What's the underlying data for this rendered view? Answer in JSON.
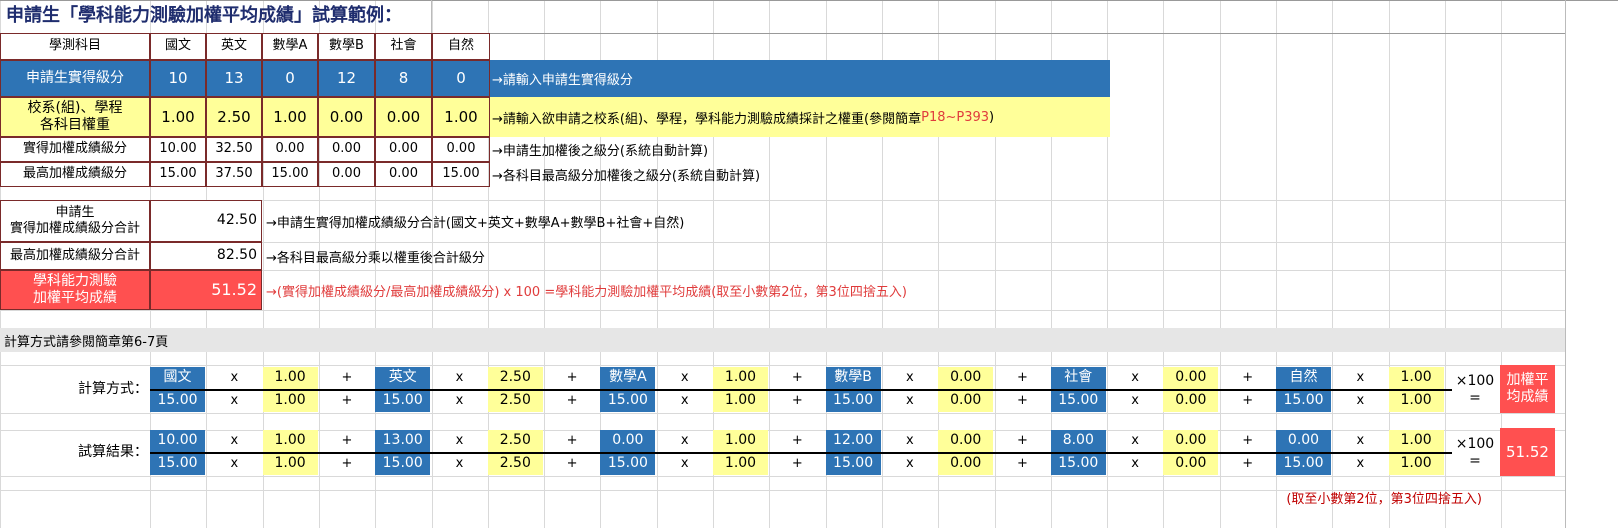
{
  "title": "申請生「學科能力測驗加權平均成績」試算範例：",
  "table": {
    "header": [
      "學測科目",
      "國文",
      "英文",
      "數學A",
      "數學B",
      "社會",
      "自然"
    ],
    "rows": [
      {
        "label": "申請生實得級分",
        "values": [
          "10",
          "13",
          "0",
          "12",
          "8",
          "0"
        ],
        "note": "→請輸入申請生實得級分"
      },
      {
        "label": "校系(組)、學程\n各科目權重",
        "values": [
          "1.00",
          "2.50",
          "1.00",
          "0.00",
          "0.00",
          "1.00"
        ],
        "note": "→請輸入欲申請之校系(組)、學程，學科能力測驗成績採計之權重(參閱簡章",
        "note_red": "P18~P393",
        "note_end": ")"
      },
      {
        "label": "實得加權成績級分",
        "values": [
          "10.00",
          "32.50",
          "0.00",
          "0.00",
          "0.00",
          "0.00"
        ],
        "note": "→申請生加權後之級分(系統自動計算)"
      },
      {
        "label": "最高加權成績級分",
        "values": [
          "15.00",
          "37.50",
          "15.00",
          "0.00",
          "0.00",
          "15.00"
        ],
        "note": "→各科目最高級分加權後之級分(系統自動計算)"
      }
    ]
  },
  "summary": [
    {
      "label": "申請生\n實得加權成績級分合計",
      "value": "42.50",
      "note": "→申請生實得加權成績級分合計(國文+英文+數學A+數學B+社會+自然)"
    },
    {
      "label": "最高加權成績級分合計",
      "value": "82.50",
      "note": "→各科目最高級分乘以權重後合計級分"
    },
    {
      "label": "學科能力測驗\n加權平均成績",
      "value": "51.52",
      "note": "→(實得加權成績級分/最高加權成績級分) x 100 =學科能力測驗加權平均成績(取至小數第2位，第3位四捨五入)"
    }
  ],
  "section_label": "計算方式請參閱簡章第6-7頁",
  "formulas": [
    {
      "label": "計算方式：",
      "top": [
        "國文",
        "1.00",
        "英文",
        "2.50",
        "數學A",
        "1.00",
        "數學B",
        "0.00",
        "社會",
        "0.00",
        "自然",
        "1.00"
      ],
      "bottom": [
        "15.00",
        "1.00",
        "15.00",
        "2.50",
        "15.00",
        "1.00",
        "15.00",
        "0.00",
        "15.00",
        "0.00",
        "15.00",
        "1.00"
      ],
      "times100": "×100 =",
      "result": "加權平\n均成績"
    },
    {
      "label": "試算結果：",
      "top": [
        "10.00",
        "1.00",
        "13.00",
        "2.50",
        "0.00",
        "1.00",
        "12.00",
        "0.00",
        "8.00",
        "0.00",
        "0.00",
        "1.00"
      ],
      "bottom": [
        "15.00",
        "1.00",
        "15.00",
        "2.50",
        "15.00",
        "1.00",
        "15.00",
        "0.00",
        "15.00",
        "0.00",
        "15.00",
        "1.00"
      ],
      "times100": "×100 =",
      "result": "51.52"
    }
  ],
  "operators": {
    "times": "x",
    "plus": "+"
  },
  "rounding_note": "(取至小數第2位，第3位四捨五入)",
  "colors": {
    "blue": "#2e74b5",
    "yellow": "#ffff99",
    "red": "#ff5050",
    "note_red": "#e03c3c"
  }
}
